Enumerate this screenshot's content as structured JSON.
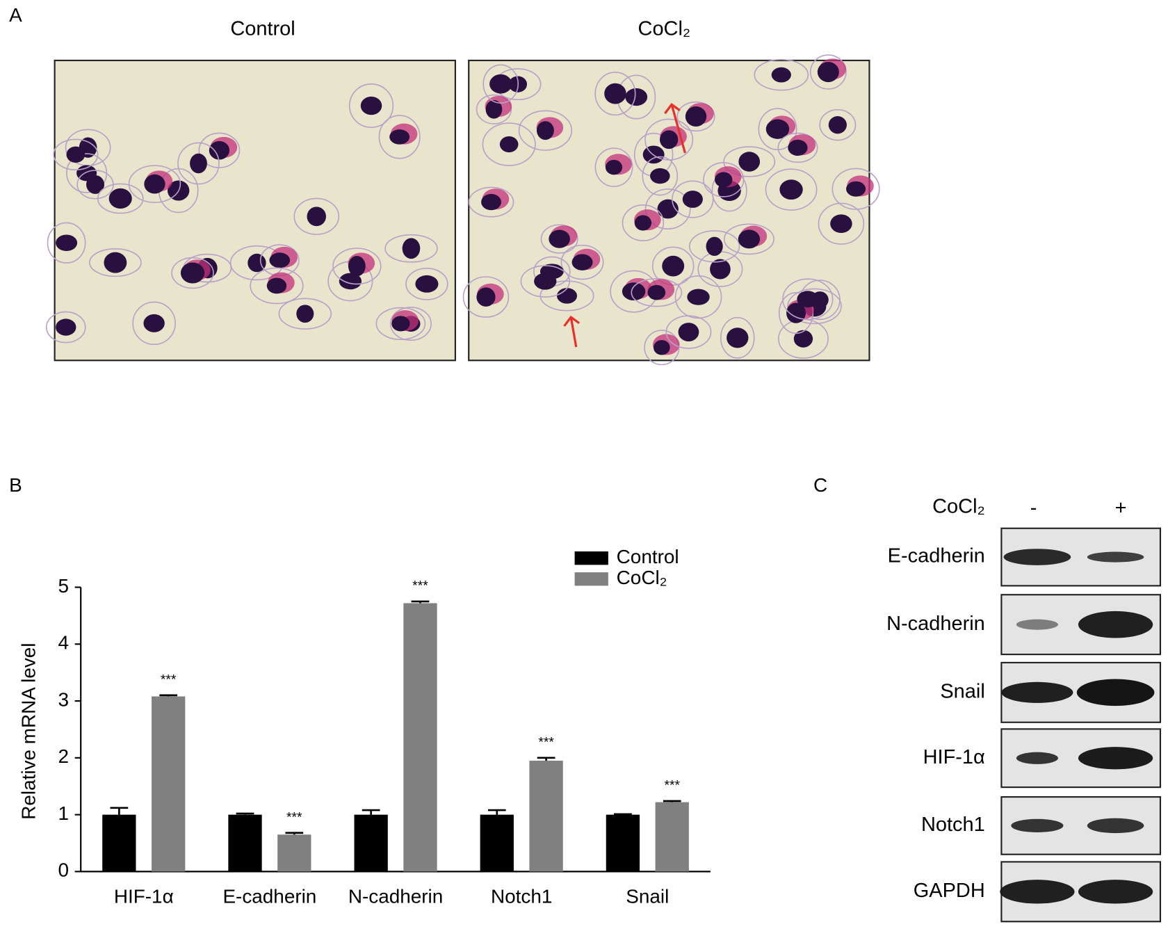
{
  "panels": {
    "a": "A",
    "b": "B",
    "c": "C"
  },
  "micrographs": {
    "titles": [
      "Control",
      "CoCl₂"
    ]
  },
  "chart_data": {
    "type": "bar",
    "y_label": "Relative mRNA level",
    "categories": [
      "HIF-1α",
      "E-cadherin",
      "N-cadherin",
      "Notch1",
      "Snail"
    ],
    "series": [
      {
        "name": "Control",
        "color": "#000000",
        "values": [
          1.0,
          1.0,
          1.0,
          1.0,
          1.0
        ],
        "errors": [
          0.12,
          0.02,
          0.08,
          0.08,
          0.01
        ]
      },
      {
        "name": "CoCl₂",
        "color": "#808080",
        "values": [
          3.08,
          0.65,
          4.72,
          1.95,
          1.22
        ],
        "errors": [
          0.02,
          0.03,
          0.03,
          0.05,
          0.02
        ],
        "annotations": [
          "***",
          "***",
          "***",
          "***",
          "***"
        ]
      }
    ],
    "ylim": [
      0,
      5
    ],
    "yticks": [
      0,
      1,
      2,
      3,
      4,
      5
    ],
    "legend": "top-right"
  },
  "western_blot": {
    "treatment": "CoCl₂",
    "lanes": [
      "-",
      "+"
    ],
    "proteins": [
      "E-cadherin",
      "N-cadherin",
      "Snail",
      "HIF-1α",
      "Notch1",
      "GAPDH"
    ]
  }
}
